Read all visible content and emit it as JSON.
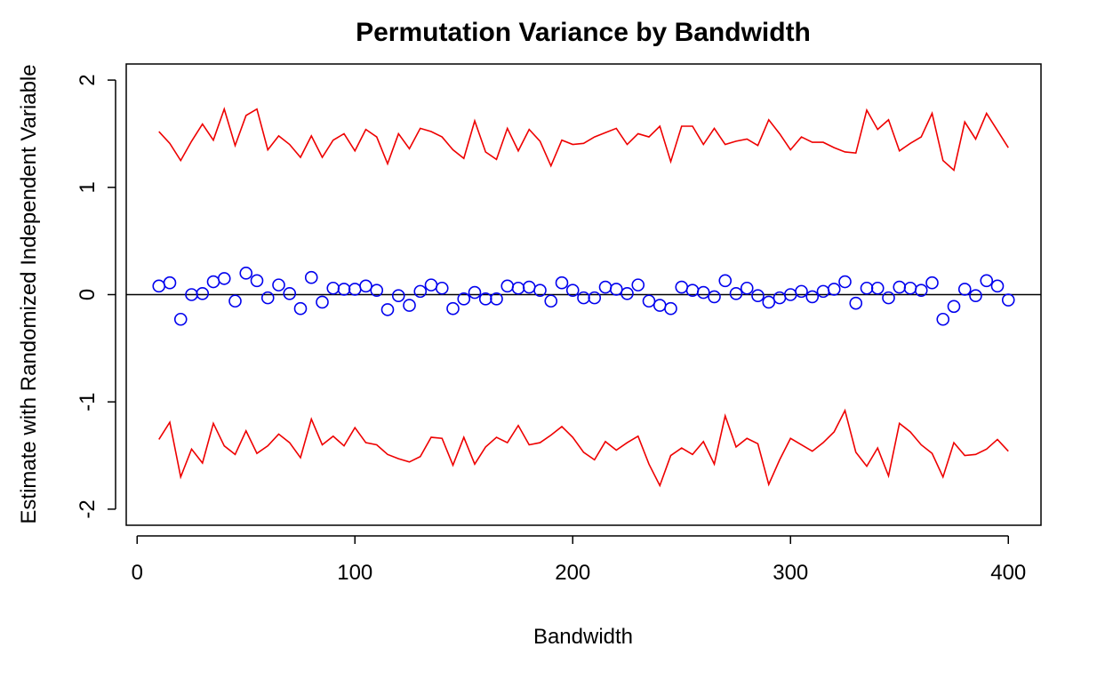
{
  "chart_data": {
    "type": "line",
    "title": "Permutation Variance by Bandwidth",
    "xlabel": "Bandwidth",
    "ylabel": "Estimate with Randomized Independent Variable",
    "xlim": [
      -5,
      415
    ],
    "ylim": [
      -2.15,
      2.15
    ],
    "xticks": [
      0,
      100,
      200,
      300,
      400
    ],
    "xtick_labels": [
      "0",
      "100",
      "200",
      "300",
      "400"
    ],
    "yticks": [
      -2,
      -1,
      0,
      1,
      2
    ],
    "ytick_labels": [
      "-2",
      "-1",
      "0",
      "1",
      "2"
    ],
    "grid": false,
    "legend": "none",
    "reference_line": {
      "y": 0,
      "color": "#000000"
    },
    "x": [
      10,
      15,
      20,
      25,
      30,
      35,
      40,
      45,
      50,
      55,
      60,
      65,
      70,
      75,
      80,
      85,
      90,
      95,
      100,
      105,
      110,
      115,
      120,
      125,
      130,
      135,
      140,
      145,
      150,
      155,
      160,
      165,
      170,
      175,
      180,
      185,
      190,
      195,
      200,
      205,
      210,
      215,
      220,
      225,
      230,
      235,
      240,
      245,
      250,
      255,
      260,
      265,
      270,
      275,
      280,
      285,
      290,
      295,
      300,
      305,
      310,
      315,
      320,
      325,
      330,
      335,
      340,
      345,
      350,
      355,
      360,
      365,
      370,
      375,
      380,
      385,
      390,
      395,
      400
    ],
    "series": [
      {
        "style": "line",
        "color": "#ee0000",
        "values": [
          1.52,
          1.41,
          1.25,
          1.43,
          1.59,
          1.44,
          1.73,
          1.39,
          1.67,
          1.73,
          1.35,
          1.48,
          1.4,
          1.28,
          1.48,
          1.28,
          1.44,
          1.5,
          1.34,
          1.54,
          1.47,
          1.22,
          1.5,
          1.36,
          1.55,
          1.52,
          1.47,
          1.35,
          1.27,
          1.62,
          1.33,
          1.26,
          1.55,
          1.34,
          1.54,
          1.43,
          1.2,
          1.44,
          1.4,
          1.41,
          1.47,
          1.51,
          1.55,
          1.4,
          1.5,
          1.47,
          1.57,
          1.24,
          1.57,
          1.57,
          1.4,
          1.55,
          1.4,
          1.43,
          1.45,
          1.39,
          1.63,
          1.5,
          1.35,
          1.47,
          1.42,
          1.42,
          1.37,
          1.33,
          1.32,
          1.72,
          1.54,
          1.63,
          1.34,
          1.41,
          1.47,
          1.69,
          1.25,
          1.16,
          1.61,
          1.45,
          1.69,
          1.53,
          1.37
        ]
      },
      {
        "style": "line",
        "color": "#ee0000",
        "values": [
          -1.35,
          -1.19,
          -1.7,
          -1.44,
          -1.57,
          -1.2,
          -1.41,
          -1.49,
          -1.27,
          -1.48,
          -1.41,
          -1.3,
          -1.38,
          -1.52,
          -1.16,
          -1.4,
          -1.32,
          -1.41,
          -1.24,
          -1.38,
          -1.4,
          -1.49,
          -1.53,
          -1.56,
          -1.51,
          -1.33,
          -1.34,
          -1.59,
          -1.33,
          -1.58,
          -1.42,
          -1.33,
          -1.38,
          -1.22,
          -1.4,
          -1.38,
          -1.31,
          -1.23,
          -1.33,
          -1.47,
          -1.54,
          -1.37,
          -1.45,
          -1.38,
          -1.32,
          -1.58,
          -1.78,
          -1.5,
          -1.43,
          -1.49,
          -1.37,
          -1.58,
          -1.13,
          -1.42,
          -1.34,
          -1.39,
          -1.77,
          -1.54,
          -1.34,
          -1.4,
          -1.46,
          -1.38,
          -1.28,
          -1.08,
          -1.47,
          -1.6,
          -1.43,
          -1.69,
          -1.2,
          -1.28,
          -1.4,
          -1.48,
          -1.7,
          -1.38,
          -1.5,
          -1.49,
          -1.44,
          -1.35,
          -1.46
        ]
      },
      {
        "style": "points",
        "color": "#0000ee",
        "values": [
          0.08,
          0.11,
          -0.23,
          0.0,
          0.01,
          0.12,
          0.15,
          -0.06,
          0.2,
          0.13,
          -0.03,
          0.09,
          0.01,
          -0.13,
          0.16,
          -0.07,
          0.06,
          0.05,
          0.05,
          0.08,
          0.04,
          -0.14,
          -0.01,
          -0.1,
          0.03,
          0.09,
          0.06,
          -0.13,
          -0.04,
          0.02,
          -0.04,
          -0.04,
          0.08,
          0.06,
          0.07,
          0.04,
          -0.06,
          0.11,
          0.04,
          -0.03,
          -0.03,
          0.07,
          0.05,
          0.01,
          0.09,
          -0.06,
          -0.1,
          -0.13,
          0.07,
          0.04,
          0.02,
          -0.02,
          0.13,
          0.01,
          0.06,
          -0.01,
          -0.07,
          -0.03,
          0.0,
          0.03,
          -0.02,
          0.03,
          0.05,
          0.12,
          -0.08,
          0.06,
          0.06,
          -0.03,
          0.07,
          0.06,
          0.04,
          0.11,
          -0.23,
          -0.11,
          0.05,
          -0.01,
          0.13,
          0.08,
          -0.05
        ]
      }
    ]
  }
}
